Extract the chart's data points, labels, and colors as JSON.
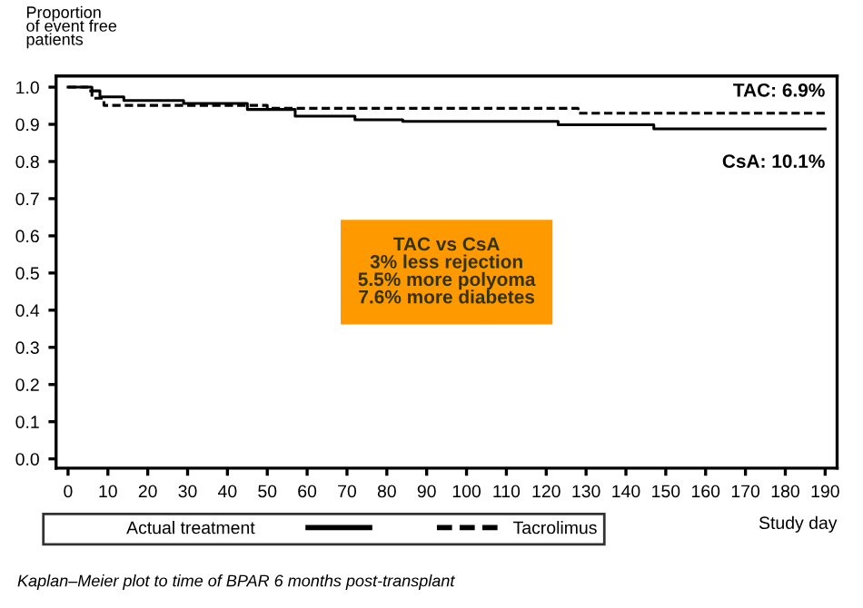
{
  "chart_data": {
    "type": "step",
    "ylabel": "Proportion\nof event free\npatients",
    "xlabel": "Study day",
    "legend_title": "Actual treatment",
    "legend": "bottom",
    "xlim": [
      -3,
      193
    ],
    "ylim": [
      -0.025,
      1.03
    ],
    "xticks": [
      0,
      10,
      20,
      30,
      40,
      50,
      60,
      70,
      80,
      90,
      100,
      110,
      120,
      130,
      140,
      150,
      160,
      170,
      180,
      190
    ],
    "yticks": [
      {
        "value": 0,
        "label": "0.0"
      },
      0.1,
      0.2,
      0.3,
      0.4,
      0.5,
      0.6,
      0.7,
      0.8,
      0.9,
      {
        "value": 1,
        "label": "1.0"
      }
    ],
    "grid": false,
    "series": [
      {
        "color": "#000000",
        "line_style": "solid",
        "x": [
          0,
          6,
          8,
          14,
          29,
          45,
          57,
          72,
          84,
          123,
          147,
          190
        ],
        "values": [
          1.0,
          0.99,
          0.974,
          0.964,
          0.956,
          0.94,
          0.922,
          0.912,
          0.908,
          0.899,
          0.888,
          0.888
        ]
      },
      {
        "name": "Tacrolimus",
        "color": "#000000",
        "line_style": "dashed",
        "x": [
          0,
          5,
          6,
          9,
          50,
          128,
          190
        ],
        "values": [
          1.0,
          0.99,
          0.97,
          0.951,
          0.943,
          0.93,
          0.93
        ]
      }
    ],
    "annotations": [
      {
        "text": "TAC: 6.9%",
        "x": 190,
        "y": 0.93
      },
      {
        "text": "CsA: 10.1%",
        "x": 190,
        "y": 0.888
      },
      "TAC vs CsA\n3% less rejection\n5.5% more polyoma\n7.6% more diabetes",
      "Kaplan–Meier plot to time of BPAR 6 months post-transplant"
    ]
  }
}
